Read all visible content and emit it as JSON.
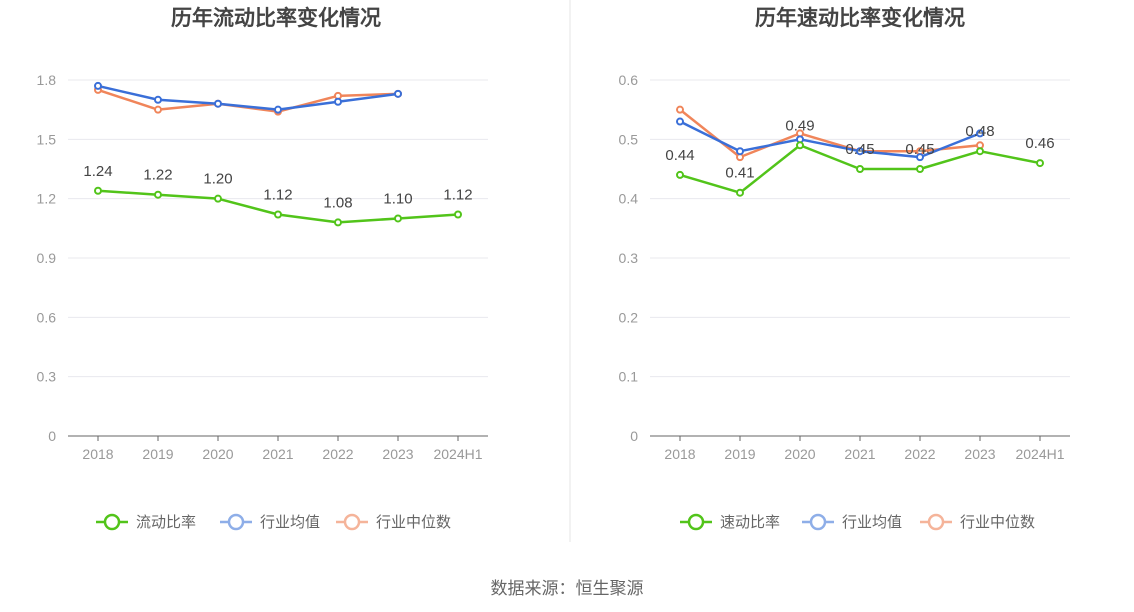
{
  "chart_data": [
    {
      "type": "line",
      "title": "历年流动比率变化情况",
      "categories": [
        "2018",
        "2019",
        "2020",
        "2021",
        "2022",
        "2023",
        "2024H1"
      ],
      "ylim": [
        0,
        1.8
      ],
      "yticks": [
        "0",
        "0.3",
        "0.6",
        "0.9",
        "1.2",
        "1.5",
        "1.8"
      ],
      "grid": true,
      "legend_position": "bottom",
      "series": [
        {
          "name": "流动比率",
          "color": "#52c41a",
          "values": [
            1.24,
            1.22,
            1.2,
            1.12,
            1.08,
            1.1,
            1.12
          ],
          "labels": [
            "1.24",
            "1.22",
            "1.20",
            "1.12",
            "1.08",
            "1.10",
            "1.12"
          ]
        },
        {
          "name": "行业均值",
          "color": "#3a6fd8",
          "values": [
            1.77,
            1.7,
            1.68,
            1.65,
            1.69,
            1.73,
            null
          ]
        },
        {
          "name": "行业中位数",
          "color": "#f0855a",
          "values": [
            1.75,
            1.65,
            1.68,
            1.64,
            1.72,
            1.73,
            null
          ]
        }
      ]
    },
    {
      "type": "line",
      "title": "历年速动比率变化情况",
      "categories": [
        "2018",
        "2019",
        "2020",
        "2021",
        "2022",
        "2023",
        "2024H1"
      ],
      "ylim": [
        0,
        0.6
      ],
      "yticks": [
        "0",
        "0.1",
        "0.2",
        "0.3",
        "0.4",
        "0.5",
        "0.6"
      ],
      "grid": true,
      "legend_position": "bottom",
      "series": [
        {
          "name": "速动比率",
          "color": "#52c41a",
          "values": [
            0.44,
            0.41,
            0.49,
            0.45,
            0.45,
            0.48,
            0.46
          ],
          "labels": [
            "0.44",
            "0.41",
            "0.49",
            "0.45",
            "0.45",
            "0.48",
            "0.46"
          ]
        },
        {
          "name": "行业均值",
          "color": "#3a6fd8",
          "values": [
            0.53,
            0.48,
            0.5,
            0.48,
            0.47,
            0.51,
            null
          ]
        },
        {
          "name": "行业中位数",
          "color": "#f0855a",
          "values": [
            0.55,
            0.47,
            0.51,
            0.48,
            0.48,
            0.49,
            null
          ]
        }
      ]
    }
  ],
  "source_text": "数据来源：恒生聚源"
}
